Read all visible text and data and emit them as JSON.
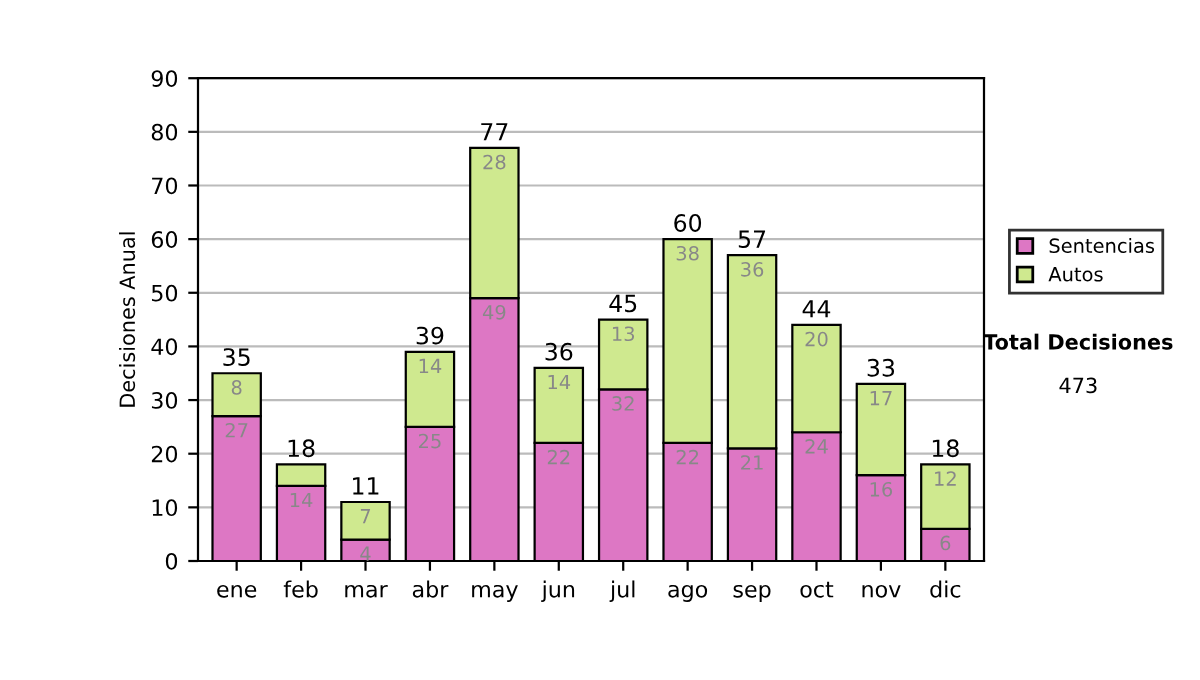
{
  "chart_data": {
    "type": "bar",
    "stacked": true,
    "ylabel": "Decisiones Anual",
    "categories": [
      "ene",
      "feb",
      "mar",
      "abr",
      "may",
      "jun",
      "jul",
      "ago",
      "sep",
      "oct",
      "nov",
      "dic"
    ],
    "series": [
      {
        "name": "Sentencias",
        "color": "#dd77c4",
        "values": [
          27,
          14,
          4,
          25,
          49,
          22,
          32,
          22,
          21,
          24,
          16,
          6
        ],
        "value_labels": [
          "27",
          "14",
          "4",
          "25",
          "49",
          "22",
          "32",
          "22",
          "21",
          "24",
          "16",
          "6"
        ]
      },
      {
        "name": "Autos",
        "color": "#cfe98f",
        "values": [
          8,
          4,
          7,
          14,
          28,
          14,
          13,
          38,
          36,
          20,
          17,
          12
        ],
        "value_labels": [
          "8",
          null,
          "7",
          "14",
          "28",
          "14",
          "13",
          "38",
          "36",
          "20",
          "17",
          "12"
        ]
      }
    ],
    "totals": [
      "35",
      "18",
      "11",
      "39",
      "77",
      "36",
      "45",
      "60",
      "57",
      "44",
      "33",
      "18"
    ],
    "ylim": [
      0,
      90
    ],
    "yticks": [
      0,
      10,
      20,
      30,
      40,
      50,
      60,
      70,
      80,
      90
    ],
    "grid": "y",
    "legend": "right",
    "annotations": [
      "Total Decisiones",
      "473"
    ]
  }
}
